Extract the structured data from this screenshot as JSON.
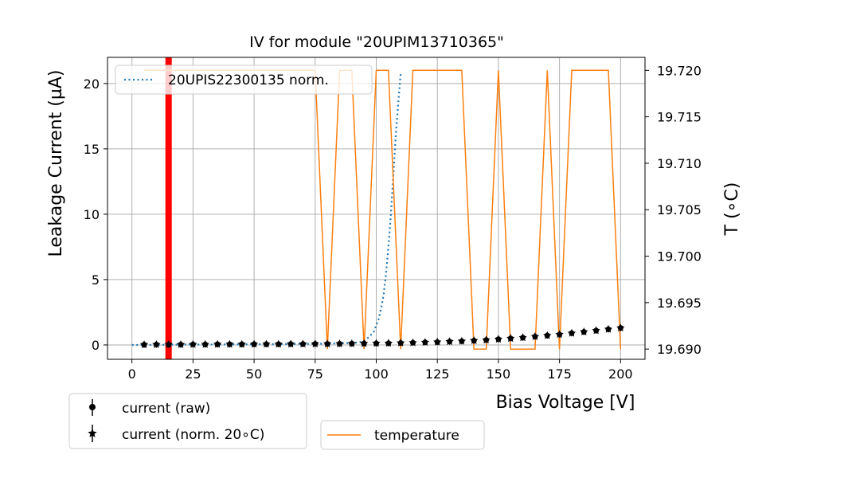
{
  "chart_data": {
    "type": "line",
    "title": "IV for module \"20UPIM13710365\"",
    "xlabel": "Bias Voltage [V]",
    "ylabel": "Leakage Current (µA)",
    "y2label": "T (∘C)",
    "xlim": [
      -10,
      210
    ],
    "ylim": [
      -1.1,
      22
    ],
    "y2lim": [
      19.6889,
      19.7214
    ],
    "xticks": [
      0,
      25,
      50,
      75,
      100,
      125,
      150,
      175,
      200
    ],
    "yticks": [
      0,
      5,
      10,
      15,
      20
    ],
    "y2ticks": [
      19.69,
      19.695,
      19.7,
      19.705,
      19.71,
      19.715,
      19.72
    ],
    "y2tick_labels": [
      "19.690",
      "19.695",
      "19.700",
      "19.705",
      "19.710",
      "19.715",
      "19.720"
    ],
    "grid": true,
    "vline": {
      "x": 15,
      "color": "#ff0000"
    },
    "colors": {
      "norm_curve": "#1f77b4",
      "temperature": "#ff7f0e",
      "current": "#000000",
      "vline": "#ff0000"
    },
    "series": [
      {
        "name": "20UPIS22300135 norm.",
        "style": "dotted",
        "axis": "left",
        "x": [
          0,
          10,
          20,
          30,
          40,
          50,
          60,
          70,
          80,
          85,
          90,
          93,
          95,
          97,
          99,
          100,
          101,
          102,
          103,
          104,
          105,
          106,
          107,
          108,
          109,
          110
        ],
        "y": [
          0.0,
          0.01,
          0.02,
          0.03,
          0.04,
          0.05,
          0.06,
          0.08,
          0.1,
          0.12,
          0.15,
          0.2,
          0.3,
          0.6,
          1.0,
          1.5,
          2.0,
          2.8,
          3.8,
          5.5,
          7.5,
          10.0,
          13.0,
          16.0,
          18.5,
          20.8
        ]
      },
      {
        "name": "temperature",
        "style": "line",
        "axis": "right",
        "x": [
          5,
          10,
          15,
          20,
          25,
          30,
          35,
          40,
          45,
          50,
          55,
          60,
          65,
          70,
          75,
          80,
          85,
          90,
          95,
          100,
          105,
          110,
          115,
          120,
          125,
          130,
          135,
          140,
          145,
          150,
          155,
          160,
          165,
          170,
          175,
          180,
          185,
          190,
          195,
          200
        ],
        "y": [
          19.72,
          19.72,
          19.72,
          19.72,
          19.72,
          19.72,
          19.72,
          19.72,
          19.72,
          19.72,
          19.72,
          19.72,
          19.72,
          19.72,
          19.72,
          19.69,
          19.72,
          19.72,
          19.69,
          19.72,
          19.72,
          19.69,
          19.72,
          19.72,
          19.72,
          19.72,
          19.72,
          19.69,
          19.69,
          19.72,
          19.69,
          19.69,
          19.69,
          19.72,
          19.69,
          19.72,
          19.72,
          19.72,
          19.72,
          19.69
        ]
      },
      {
        "name": "current (raw)",
        "style": "dot-errorbar",
        "axis": "left",
        "x": [
          5,
          10,
          15,
          20,
          25,
          30,
          35,
          40,
          45,
          50,
          55,
          60,
          65,
          70,
          75,
          80,
          85,
          90,
          95,
          100,
          105,
          110,
          115,
          120,
          125,
          130,
          135,
          140,
          145,
          150,
          155,
          160,
          165,
          170,
          175,
          180,
          185,
          190,
          195,
          200
        ],
        "y": [
          0.02,
          0.03,
          0.03,
          0.03,
          0.04,
          0.04,
          0.05,
          0.05,
          0.05,
          0.06,
          0.06,
          0.06,
          0.07,
          0.07,
          0.08,
          0.08,
          0.09,
          0.1,
          0.11,
          0.12,
          0.13,
          0.15,
          0.17,
          0.2,
          0.22,
          0.26,
          0.29,
          0.33,
          0.38,
          0.44,
          0.5,
          0.56,
          0.64,
          0.72,
          0.8,
          0.9,
          1.0,
          1.1,
          1.2,
          1.3
        ]
      },
      {
        "name": "current (norm. 20∘C)",
        "style": "star-errorbar",
        "axis": "left",
        "x": [
          5,
          10,
          15,
          20,
          25,
          30,
          35,
          40,
          45,
          50,
          55,
          60,
          65,
          70,
          75,
          80,
          85,
          90,
          95,
          100,
          105,
          110,
          115,
          120,
          125,
          130,
          135,
          140,
          145,
          150,
          155,
          160,
          165,
          170,
          175,
          180,
          185,
          190,
          195,
          200
        ],
        "y": [
          0.02,
          0.03,
          0.03,
          0.03,
          0.04,
          0.04,
          0.05,
          0.05,
          0.05,
          0.06,
          0.06,
          0.06,
          0.07,
          0.07,
          0.08,
          0.08,
          0.09,
          0.1,
          0.11,
          0.12,
          0.13,
          0.15,
          0.17,
          0.2,
          0.22,
          0.26,
          0.29,
          0.33,
          0.38,
          0.44,
          0.5,
          0.56,
          0.64,
          0.72,
          0.8,
          0.9,
          1.0,
          1.1,
          1.2,
          1.3
        ]
      }
    ],
    "legends": {
      "inner": [
        "20UPIS22300135 norm."
      ],
      "bottom_left": [
        "current (raw)",
        "current (norm. 20∘C)"
      ],
      "bottom_right": [
        "temperature"
      ]
    }
  }
}
